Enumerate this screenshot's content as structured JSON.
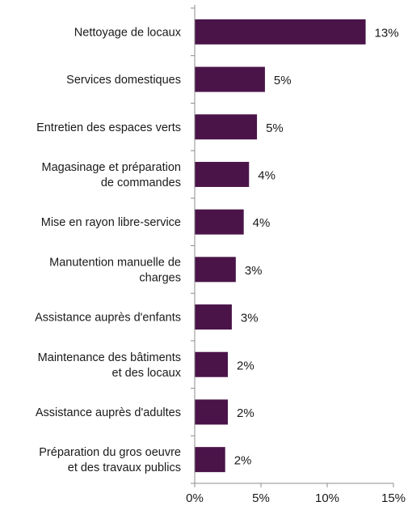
{
  "chart_data": {
    "type": "bar",
    "orientation": "horizontal",
    "categories": [
      [
        "Nettoyage de locaux"
      ],
      [
        "Services domestiques"
      ],
      [
        "Entretien des espaces verts"
      ],
      [
        "Magasinage et préparation",
        "de commandes"
      ],
      [
        "Mise en rayon libre-service"
      ],
      [
        "Manutention manuelle de",
        "charges"
      ],
      [
        "Assistance auprès d'enfants"
      ],
      [
        "Maintenance des bâtiments",
        "et des locaux"
      ],
      [
        "Assistance auprès d'adultes"
      ],
      [
        "Préparation du gros oeuvre",
        "et des travaux publics"
      ]
    ],
    "values": [
      12.9,
      5.3,
      4.7,
      4.1,
      3.7,
      3.1,
      2.8,
      2.5,
      2.5,
      2.3
    ],
    "value_labels": [
      "13%",
      "5%",
      "5%",
      "4%",
      "4%",
      "3%",
      "3%",
      "2%",
      "2%",
      "2%"
    ],
    "xlim": [
      0,
      15
    ],
    "xticks": [
      0,
      5,
      10,
      15
    ],
    "xtick_labels": [
      "0%",
      "5%",
      "10%",
      "15%"
    ],
    "bar_color": "#4a1449",
    "axis_color": "#8c8c8c",
    "grid": false
  }
}
